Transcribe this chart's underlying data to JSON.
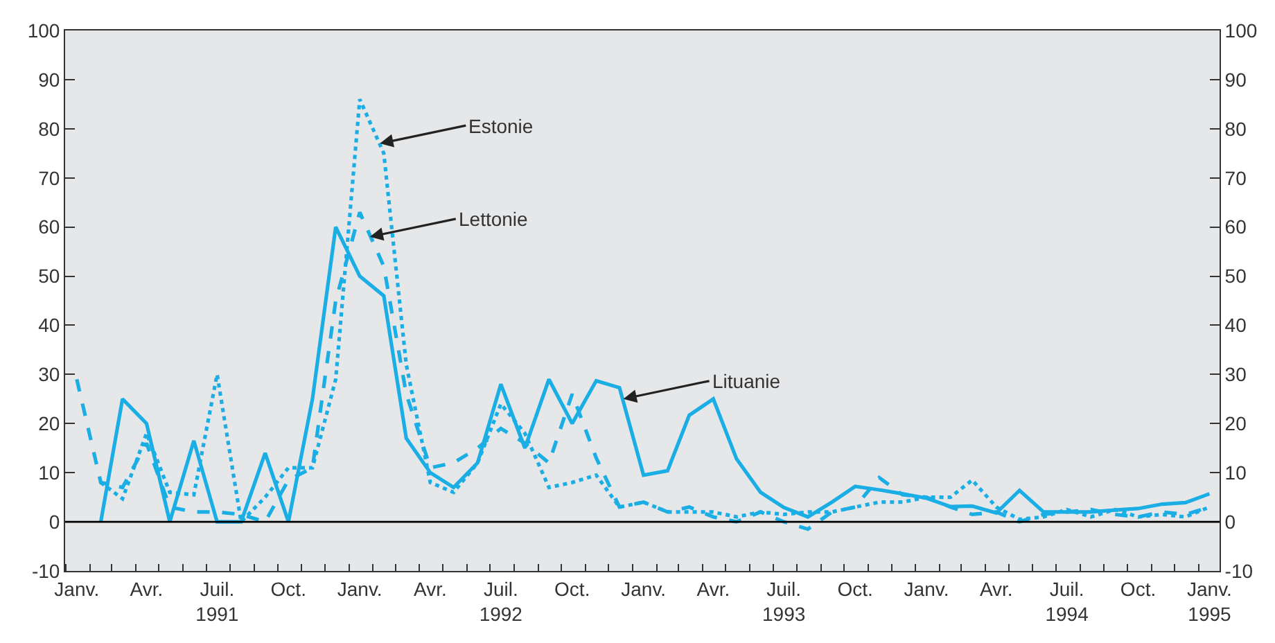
{
  "chart_data": {
    "type": "line",
    "x": [
      "1991-01-15",
      "1991-02-15",
      "1991-03-15",
      "1991-04-15",
      "1991-05-15",
      "1991-06-15",
      "1991-07-15",
      "1991-08-15",
      "1991-09-15",
      "1991-10-15",
      "1991-11-15",
      "1991-12-15",
      "1992-01-15",
      "1992-02-15",
      "1992-03-15",
      "1992-04-15",
      "1992-05-15",
      "1992-06-15",
      "1992-07-15",
      "1992-08-15",
      "1992-09-15",
      "1992-10-15",
      "1992-11-15",
      "1992-12-15",
      "1993-01-15",
      "1993-02-15",
      "1993-03-15",
      "1993-04-15",
      "1993-05-15",
      "1993-06-15",
      "1993-07-15",
      "1993-08-15",
      "1993-09-15",
      "1993-10-15",
      "1993-11-15",
      "1993-12-15",
      "1994-01-15",
      "1994-02-15",
      "1994-03-15",
      "1994-04-15",
      "1994-05-15",
      "1994-06-15",
      "1994-07-15",
      "1994-08-15",
      "1994-09-15",
      "1994-10-15",
      "1994-11-15",
      "1994-12-15",
      "1995-01-15"
    ],
    "series": [
      {
        "color": "#1aaee5",
        "line_style": "dotted",
        "values": [
          null,
          8,
          4.7,
          18,
          6,
          5.5,
          30,
          0,
          5,
          11,
          11,
          29,
          86,
          75,
          32,
          8,
          6,
          12,
          24,
          18,
          7,
          8,
          9.5,
          3,
          4,
          2,
          2,
          2,
          1,
          2,
          1.5,
          2,
          2,
          3,
          4,
          4,
          5,
          5,
          8.5,
          3,
          0.5,
          1,
          2.5,
          1,
          2.5,
          1,
          1.5,
          1,
          3
        ]
      },
      {
        "color": "#1aaee5",
        "line_style": "dashed",
        "values": [
          29,
          8,
          7,
          16,
          3,
          2,
          2,
          1.5,
          0,
          8.5,
          11,
          45,
          63,
          52,
          26,
          11,
          12,
          15,
          19,
          16,
          12,
          26,
          13,
          3,
          4,
          2,
          3,
          1,
          0,
          2,
          0,
          -1.5,
          2,
          3,
          9,
          5.5,
          5,
          3,
          1.5,
          2,
          0,
          1.5,
          2,
          2.5,
          1.5,
          1,
          2,
          1.5,
          3
        ]
      },
      {
        "color": "#1aaee5",
        "line_style": "solid",
        "values": [
          null,
          0,
          25,
          20,
          0,
          16.5,
          0,
          0,
          14,
          0,
          25,
          60,
          50,
          46,
          17,
          10,
          7,
          12,
          28,
          15,
          29,
          20,
          28.7,
          27.3,
          9.5,
          10.4,
          21.7,
          25,
          12.8,
          6,
          2.9,
          1,
          4,
          7.2,
          6.5,
          5.7,
          4.8,
          3.1,
          3.2,
          1.8,
          6.4,
          2,
          2,
          2,
          2.4,
          2.7,
          3.6,
          3.9,
          5.7
        ]
      }
    ],
    "xlim": [
      "1990-12-31",
      "1995-01-28"
    ],
    "xticks": [
      {
        "value": "1991-01-15",
        "label": "Janv."
      },
      {
        "value": "1991-04-15",
        "label": "Avr."
      },
      {
        "value": "1991-07-15",
        "label": "Juil.\n1991"
      },
      {
        "value": "1991-10-15",
        "label": "Oct."
      },
      {
        "value": "1992-01-15",
        "label": "Janv."
      },
      {
        "value": "1992-04-15",
        "label": "Avr."
      },
      {
        "value": "1992-07-15",
        "label": "Juil.\n1992"
      },
      {
        "value": "1992-10-15",
        "label": "Oct."
      },
      {
        "value": "1993-01-15",
        "label": "Janv."
      },
      {
        "value": "1993-04-15",
        "label": "Avr."
      },
      {
        "value": "1993-07-15",
        "label": "Juil.\n1993"
      },
      {
        "value": "1993-10-15",
        "label": "Oct."
      },
      {
        "value": "1994-01-15",
        "label": "Janv."
      },
      {
        "value": "1994-04-15",
        "label": "Avr."
      },
      {
        "value": "1994-07-15",
        "label": "Juil.\n1994"
      },
      {
        "value": "1994-10-15",
        "label": "Oct."
      },
      {
        "value": "1995-01-15",
        "label": "Janv.\n1995"
      }
    ],
    "ylim": [
      -10,
      100
    ],
    "yticks": [
      -10,
      0,
      10,
      20,
      30,
      40,
      50,
      60,
      70,
      80,
      90,
      100
    ],
    "y2lim": [
      -10,
      100
    ],
    "y2ticks": [
      -10,
      0,
      10,
      20,
      30,
      40,
      50,
      60,
      70,
      80,
      90,
      100
    ],
    "ref_lines": [
      {
        "axis": "y",
        "value": 0,
        "color": "#000000",
        "line_style": "solid"
      }
    ],
    "annotations": [
      {
        "text": "Estonie",
        "x": "1992-02-10",
        "y": 77
      },
      {
        "text": "Lettonie",
        "x": "1992-01-28",
        "y": 58
      },
      {
        "text": "Lituanie",
        "x": "1992-12-20",
        "y": 25
      }
    ],
    "grid": false,
    "marker": "none"
  }
}
